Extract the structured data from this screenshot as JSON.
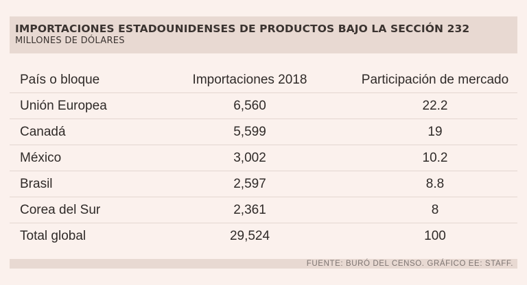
{
  "header": {
    "title": "IMPORTACIONES ESTADOUNIDENSES DE PRODUCTOS BAJO LA SECCIÓN 232",
    "subtitle": "MILLONES DE DÓLARES"
  },
  "table": {
    "columns": [
      "País o bloque",
      "Importaciones 2018",
      "Participación de mercado"
    ],
    "rows": [
      {
        "country": "Unión Europea",
        "imports": "6,560",
        "share": "22.2"
      },
      {
        "country": "Canadá",
        "imports": "5,599",
        "share": "19"
      },
      {
        "country": "México",
        "imports": "3,002",
        "share": "10.2"
      },
      {
        "country": "Brasil",
        "imports": "2,597",
        "share": "8.8"
      },
      {
        "country": "Corea del Sur",
        "imports": "2,361",
        "share": "8"
      },
      {
        "country": "Total global",
        "imports": "29,524",
        "share": "100"
      }
    ]
  },
  "footer": {
    "source": "FUENTE: BURÓ DEL CENSO. GRÁFICO EE: STAFF."
  },
  "colors": {
    "background": "#fbf1ed",
    "band": "#e8d9d2",
    "text": "#2f2a28"
  }
}
